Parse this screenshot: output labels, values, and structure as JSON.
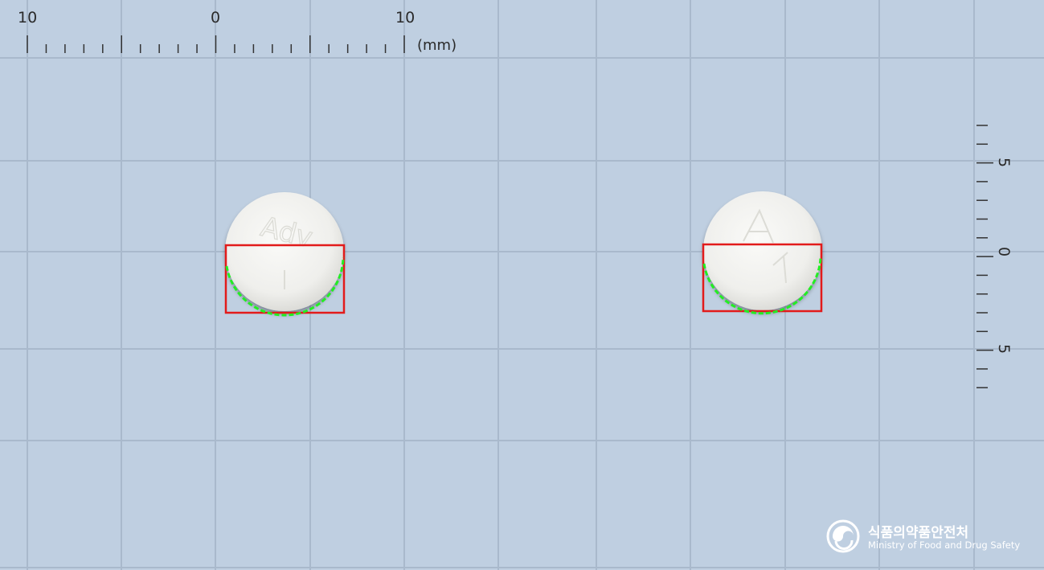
{
  "ruler_top": {
    "labels": [
      "10",
      "0",
      "10"
    ],
    "unit": "(mm)"
  },
  "ruler_right": {
    "labels": [
      "5",
      "0",
      "5"
    ]
  },
  "tablets": [
    {
      "name": "left-tablet",
      "imprint": "Adv I",
      "outline_color": "#e21b1b",
      "edge_color": "#22ee22"
    },
    {
      "name": "right-tablet",
      "imprint": "A",
      "outline_color": "#e21b1b",
      "edge_color": "#22ee22"
    }
  ],
  "logo": {
    "korean": "식품의약품안전처",
    "english": "Ministry of Food and Drug Safety",
    "icon": "taegeuk-swirl-icon"
  },
  "colors": {
    "background": "#bfcfe1",
    "grid": "#a9b9cc",
    "tablet": "#f3f3f1",
    "outline": "#e21b1b",
    "edge": "#22ee22"
  }
}
